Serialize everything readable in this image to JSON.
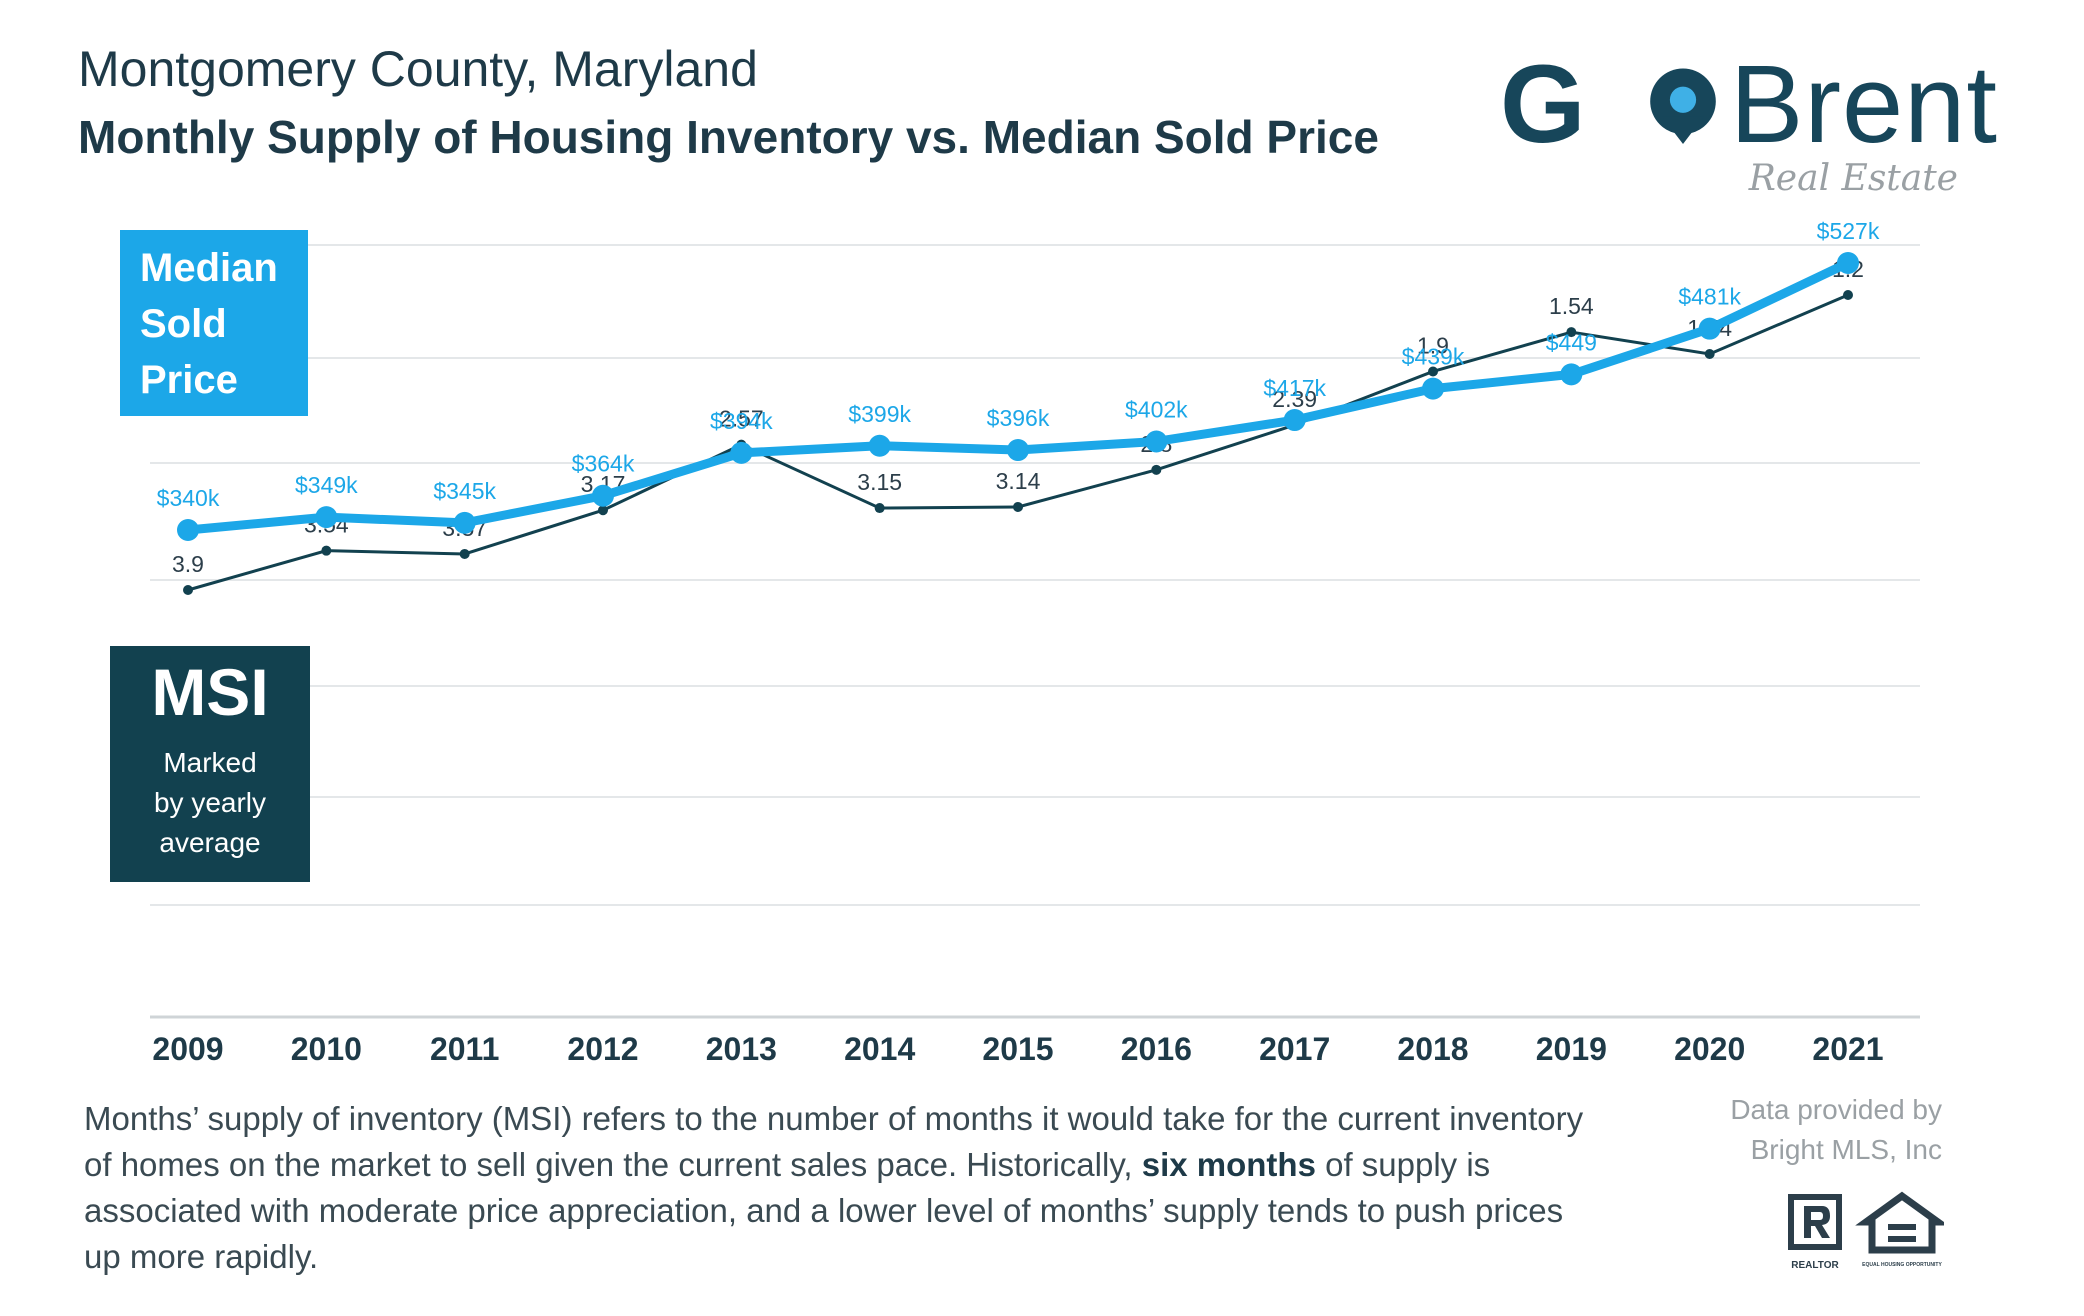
{
  "header": {
    "title": "Montgomery County, Maryland",
    "subtitle": "Monthly Supply of Housing Inventory vs. Median Sold Price"
  },
  "logo": {
    "go": "GO",
    "brent": "Brent",
    "sub": "Real Estate",
    "icon": "map-pin-icon"
  },
  "labels": {
    "price_box": [
      "Median",
      "Sold",
      "Price"
    ],
    "msi_title": "MSI",
    "msi_sub": [
      "Marked",
      "by yearly",
      "average"
    ]
  },
  "description": {
    "before": "Months’ supply of inventory (MSI) refers to the number of months it would take for the current inventory of homes on the market to sell given the current sales pace. Historically, ",
    "bold": "six months",
    "after": " of supply is associated with moderate price appreciation, and a lower level of months’ supply tends to push prices up more rapidly."
  },
  "credit": [
    "Data provided by",
    "Bright MLS, Inc"
  ],
  "badges": {
    "realtor": "REALTOR",
    "equal_housing": "EQUAL HOUSING OPPORTUNITY"
  },
  "colors": {
    "price": "#1ca7e8",
    "msi": "#12414f",
    "grid": "#e4e7e9"
  },
  "chart_data": {
    "type": "line",
    "x": [
      "2009",
      "2010",
      "2011",
      "2012",
      "2013",
      "2014",
      "2015",
      "2016",
      "2017",
      "2018",
      "2019",
      "2020",
      "2021"
    ],
    "series": [
      {
        "name": "Median Sold Price",
        "values": [
          340,
          349,
          345,
          364,
          394,
          399,
          396,
          402,
          417,
          439,
          449,
          481,
          527
        ],
        "labels": [
          "$340k",
          "$349k",
          "$345k",
          "$364k",
          "$394k",
          "$399k",
          "$396k",
          "$402k",
          "$417k",
          "$439k",
          "$449",
          "$481k",
          "$527k"
        ]
      },
      {
        "name": "MSI",
        "values": [
          3.9,
          3.54,
          3.57,
          3.17,
          2.57,
          3.15,
          3.14,
          2.8,
          2.39,
          1.9,
          1.54,
          1.74,
          1.2
        ],
        "labels": [
          "3.9",
          "3.54",
          "3.57",
          "3.17",
          "2.57",
          "3.15",
          "3.14",
          "2.8",
          "2.39",
          "1.9",
          "1.54",
          "1.74",
          "1.2"
        ]
      }
    ],
    "grid": true
  }
}
